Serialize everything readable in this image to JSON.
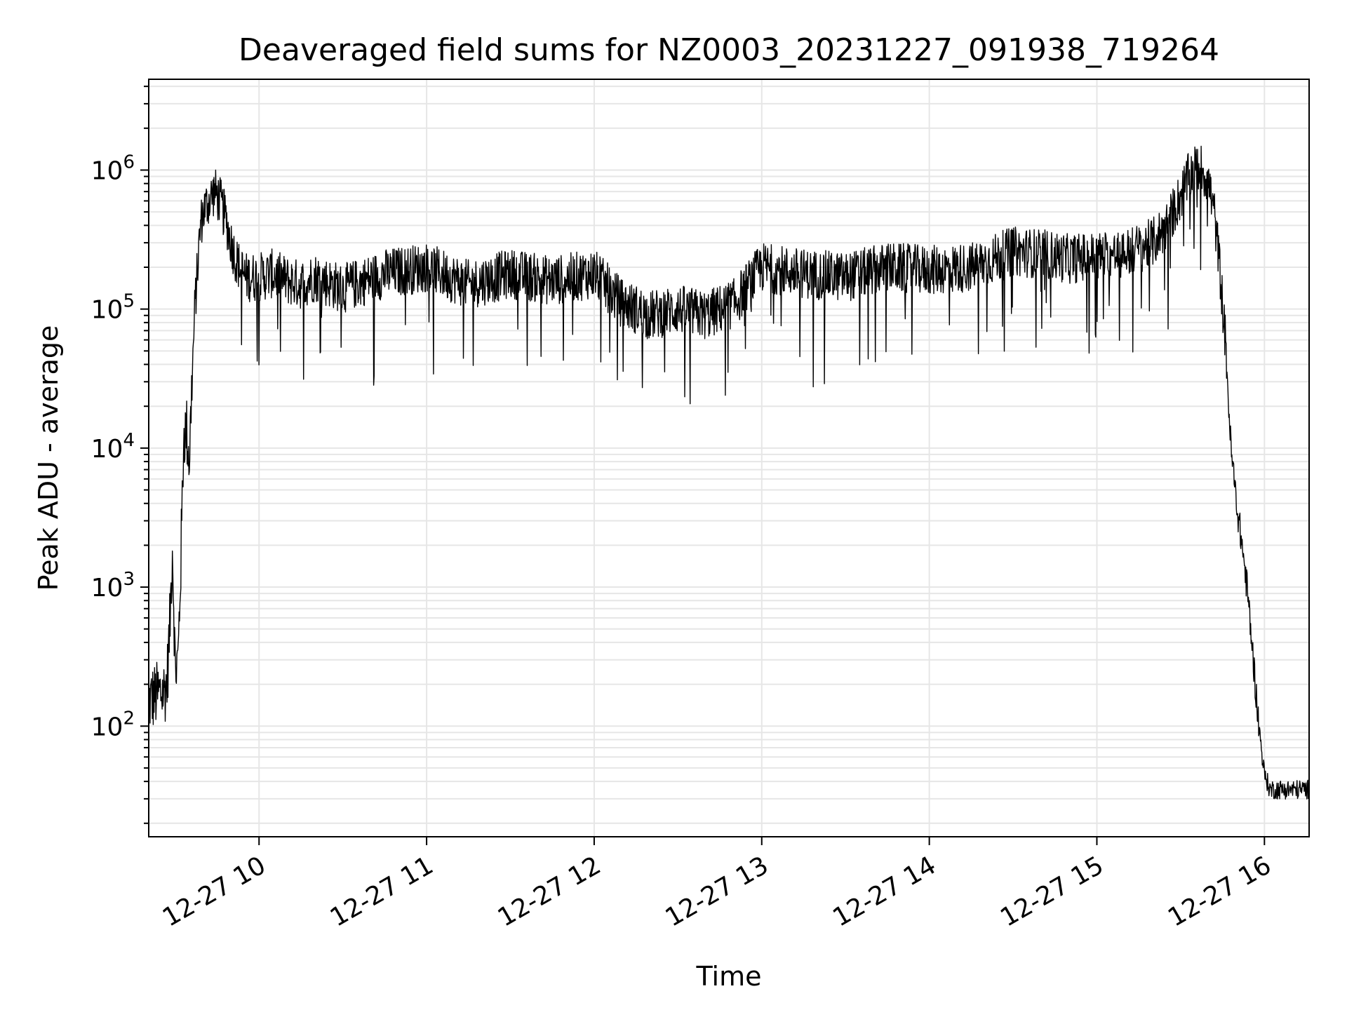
{
  "chart_data": {
    "type": "line",
    "title": "Deaveraged field sums for NZ0003_20231227_091938_719264",
    "xlabel": "Time",
    "ylabel": "Peak ADU - average",
    "yscale": "log",
    "ylim": [
      16,
      4500000
    ],
    "xlim": [
      "2023-12-27 09:20:30",
      "2023-12-27 16:16:00"
    ],
    "grid": true,
    "line_color": "#000000",
    "grid_color": "#e6e6e6",
    "x_ticks": [
      {
        "value": "2023-12-27 10:00",
        "label": "12-27 10"
      },
      {
        "value": "2023-12-27 11:00",
        "label": "12-27 11"
      },
      {
        "value": "2023-12-27 12:00",
        "label": "12-27 12"
      },
      {
        "value": "2023-12-27 13:00",
        "label": "12-27 13"
      },
      {
        "value": "2023-12-27 14:00",
        "label": "12-27 14"
      },
      {
        "value": "2023-12-27 15:00",
        "label": "12-27 15"
      },
      {
        "value": "2023-12-27 16:00",
        "label": "12-27 16"
      }
    ],
    "y_ticks": [
      {
        "value": 100,
        "base": "10",
        "exp": "2"
      },
      {
        "value": 1000,
        "base": "10",
        "exp": "3"
      },
      {
        "value": 10000,
        "base": "10",
        "exp": "4"
      },
      {
        "value": 100000,
        "base": "10",
        "exp": "5"
      },
      {
        "value": 1000000,
        "base": "10",
        "exp": "6"
      }
    ],
    "series": [
      {
        "x": [
          "2023-12-27 09:20:30",
          "2023-12-27 09:22",
          "2023-12-27 09:24",
          "2023-12-27 09:26",
          "2023-12-27 09:27",
          "2023-12-27 09:28",
          "2023-12-27 09:29",
          "2023-12-27 09:30",
          "2023-12-27 09:31",
          "2023-12-27 09:32",
          "2023-12-27 09:33",
          "2023-12-27 09:34",
          "2023-12-27 09:35",
          "2023-12-27 09:36",
          "2023-12-27 09:37",
          "2023-12-27 09:38",
          "2023-12-27 09:39",
          "2023-12-27 09:40",
          "2023-12-27 09:41",
          "2023-12-27 09:42",
          "2023-12-27 09:43",
          "2023-12-27 09:44",
          "2023-12-27 09:45",
          "2023-12-27 09:46",
          "2023-12-27 09:48",
          "2023-12-27 09:50",
          "2023-12-27 09:52",
          "2023-12-27 09:55",
          "2023-12-27 09:58",
          "2023-12-27 10:00",
          "2023-12-27 10:05",
          "2023-12-27 10:10",
          "2023-12-27 10:15",
          "2023-12-27 10:20",
          "2023-12-27 10:30",
          "2023-12-27 10:45",
          "2023-12-27 11:00",
          "2023-12-27 11:15",
          "2023-12-27 11:30",
          "2023-12-27 11:45",
          "2023-12-27 12:00",
          "2023-12-27 12:10",
          "2023-12-27 12:20",
          "2023-12-27 12:30",
          "2023-12-27 12:40",
          "2023-12-27 12:50",
          "2023-12-27 13:00",
          "2023-12-27 13:15",
          "2023-12-27 13:30",
          "2023-12-27 13:45",
          "2023-12-27 14:00",
          "2023-12-27 14:15",
          "2023-12-27 14:30",
          "2023-12-27 14:40",
          "2023-12-27 14:50",
          "2023-12-27 15:00",
          "2023-12-27 15:10",
          "2023-12-27 15:20",
          "2023-12-27 15:25",
          "2023-12-27 15:30",
          "2023-12-27 15:33",
          "2023-12-27 15:36",
          "2023-12-27 15:38",
          "2023-12-27 15:40",
          "2023-12-27 15:42",
          "2023-12-27 15:44",
          "2023-12-27 15:46",
          "2023-12-27 15:48",
          "2023-12-27 15:50",
          "2023-12-27 15:52",
          "2023-12-27 15:54",
          "2023-12-27 15:56",
          "2023-12-27 15:58",
          "2023-12-27 16:00",
          "2023-12-27 16:02",
          "2023-12-27 16:04",
          "2023-12-27 16:06",
          "2023-12-27 16:10",
          "2023-12-27 16:16"
        ],
        "values": [
          150,
          160,
          170,
          180,
          200,
          500,
          2000,
          250,
          300,
          1500,
          12000,
          14000,
          8000,
          30000,
          100000,
          200000,
          400000,
          500000,
          550000,
          600000,
          650000,
          700000,
          650000,
          600000,
          450000,
          300000,
          220000,
          170000,
          170000,
          170000,
          180000,
          160000,
          150000,
          170000,
          140000,
          180000,
          200000,
          150000,
          180000,
          160000,
          180000,
          110000,
          90000,
          100000,
          90000,
          110000,
          200000,
          180000,
          170000,
          200000,
          190000,
          200000,
          260000,
          250000,
          230000,
          240000,
          250000,
          300000,
          400000,
          650000,
          900000,
          1050000,
          1000000,
          800000,
          500000,
          200000,
          60000,
          10000,
          4000,
          2000,
          900,
          300,
          100,
          45,
          35,
          35,
          35,
          35,
          35
        ]
      }
    ]
  }
}
